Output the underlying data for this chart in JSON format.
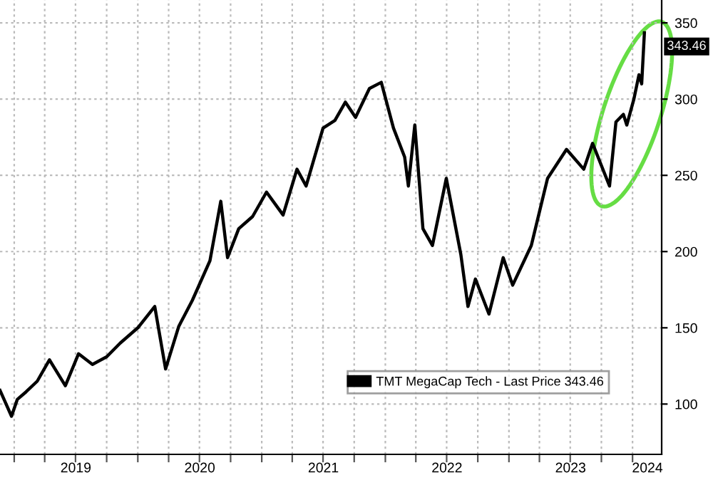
{
  "chart_data": {
    "type": "line",
    "legend": "bottom right",
    "grid": true,
    "line_style": "solid",
    "marker": "none",
    "x": [
      "2018-11-20",
      "2018-12-24",
      "2019-01-10",
      "2019-02-05",
      "2019-03-10",
      "2019-04-15",
      "2019-06-01",
      "2019-07-10",
      "2019-08-20",
      "2019-10-01",
      "2019-11-10",
      "2020-01-01",
      "2020-02-20",
      "2020-03-23",
      "2020-05-01",
      "2020-06-10",
      "2020-08-01",
      "2020-09-02",
      "2020-09-22",
      "2020-10-25",
      "2020-12-05",
      "2021-01-15",
      "2021-03-05",
      "2021-04-15",
      "2021-05-12",
      "2021-07-01",
      "2021-08-05",
      "2021-09-05",
      "2021-10-05",
      "2021-11-15",
      "2021-12-20",
      "2022-01-25",
      "2022-02-27",
      "2022-03-10",
      "2022-03-29",
      "2022-04-22",
      "2022-05-20",
      "2022-06-30",
      "2022-08-12",
      "2022-09-02",
      "2022-09-24",
      "2022-11-03",
      "2022-12-15",
      "2023-01-12",
      "2023-03-08",
      "2023-04-25",
      "2023-06-20",
      "2023-08-10",
      "2023-09-05",
      "2023-10-25",
      "2023-11-13",
      "2023-12-05",
      "2023-12-15",
      "2024-01-05",
      "2024-01-20",
      "2024-01-28",
      "2024-02-05"
    ],
    "series": [
      {
        "name": "TMT MegaCap Tech - Last Price 343.46",
        "color": "#000000",
        "values": [
          109,
          92,
          103,
          108,
          115,
          129,
          112,
          133,
          126,
          131,
          140,
          150,
          164,
          123,
          151,
          168,
          194,
          233,
          196,
          215,
          223,
          239,
          224,
          254,
          243,
          281,
          286,
          298,
          288,
          307,
          311,
          281,
          262,
          243,
          283,
          215,
          204,
          248,
          198,
          164,
          182,
          159,
          196,
          178,
          204,
          248,
          267,
          254,
          271,
          243,
          285,
          290,
          283,
          300,
          316,
          310,
          343.46
        ]
      }
    ],
    "ylim": [
      67,
      365
    ],
    "yticks": [
      100,
      150,
      200,
      250,
      300,
      350
    ],
    "xlim": [
      "2018-11-20",
      "2024-03-27"
    ],
    "xticks": [
      {
        "value": "2019-01-01",
        "label": null
      },
      {
        "value": "2019-04-01",
        "label": null
      },
      {
        "value": "2019-07-01",
        "label": null
      },
      {
        "value": "2019-10-01",
        "label": null
      },
      {
        "value": "2020-01-01",
        "label": null
      },
      {
        "value": "2020-04-01",
        "label": null
      },
      {
        "value": "2020-07-01",
        "label": null
      },
      {
        "value": "2020-10-01",
        "label": null
      },
      {
        "value": "2021-01-01",
        "label": null
      },
      {
        "value": "2021-04-01",
        "label": null
      },
      {
        "value": "2021-07-01",
        "label": null
      },
      {
        "value": "2021-10-01",
        "label": null
      },
      {
        "value": "2022-01-01",
        "label": null
      },
      {
        "value": "2022-04-01",
        "label": null
      },
      {
        "value": "2022-07-01",
        "label": null
      },
      {
        "value": "2022-10-01",
        "label": null
      },
      {
        "value": "2023-01-01",
        "label": null
      },
      {
        "value": "2023-04-01",
        "label": null
      },
      {
        "value": "2023-07-01",
        "label": null
      },
      {
        "value": "2023-10-01",
        "label": null
      },
      {
        "value": "2024-01-01",
        "label": null
      },
      {
        "value": "2019-07-02",
        "label": "2019"
      },
      {
        "value": "2020-07-02",
        "label": "2020"
      },
      {
        "value": "2021-07-02",
        "label": "2021"
      },
      {
        "value": "2022-07-02",
        "label": "2022"
      },
      {
        "value": "2023-07-02",
        "label": "2023"
      },
      {
        "value": "2024-02-14",
        "label": "2024"
      }
    ],
    "annotations": [
      {
        "text": "343.46",
        "x": "2024-02-05",
        "y": 343.46
      }
    ]
  }
}
